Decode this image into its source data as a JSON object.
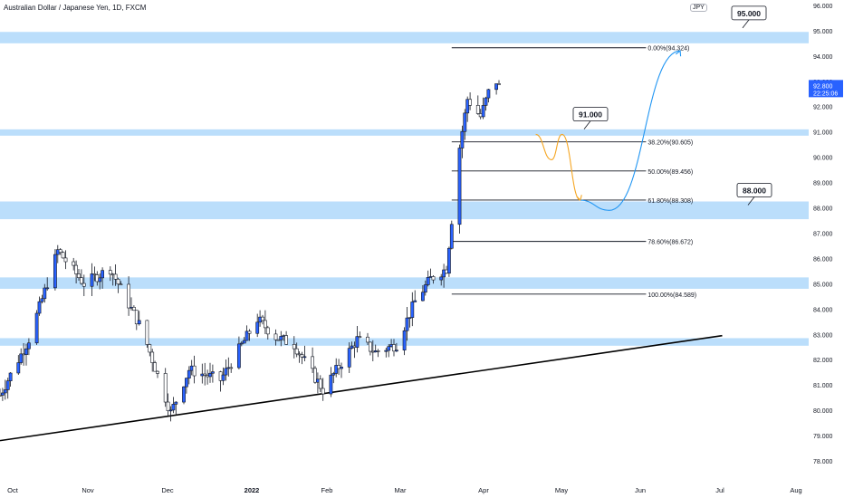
{
  "header": {
    "title": "Australian Dollar / Japanese Yen, 1D, FXCM",
    "currency_badge": "JPY"
  },
  "colors": {
    "candle_up": "#2962ff",
    "candle_down": "#ffffff",
    "wick": "#131722",
    "zone": "#bbdefb",
    "fib_line": "#131722",
    "trendline": "#000000",
    "arrow_orange": "#f5a623",
    "arrow_blue": "#2196f3",
    "price_label_bg": "#2962ff"
  },
  "chart_data": {
    "type": "candlestick",
    "symbol": "AUDJPY",
    "timeframe": "1D",
    "x_ticks": [
      "Oct",
      "Nov",
      "Dec",
      "2022",
      "Feb",
      "Mar",
      "Apr",
      "May",
      "Jun",
      "Jul",
      "Aug"
    ],
    "y_ticks": [
      "78.000",
      "79.000",
      "80.000",
      "81.000",
      "82.000",
      "83.000",
      "84.000",
      "85.000",
      "86.000",
      "87.000",
      "88.000",
      "89.000",
      "90.000",
      "91.000",
      "92.000",
      "93.000",
      "94.000",
      "95.000",
      "96.000"
    ],
    "ylim": [
      77.5,
      96.2
    ],
    "current_price": {
      "value": "92.800",
      "countdown": "22:25:06"
    },
    "anchors": [
      {
        "date": "Sep 27",
        "price": 80.6
      },
      {
        "date": "Oct 8",
        "price": 82.8
      },
      {
        "date": "Oct 19",
        "price": 86.3
      },
      {
        "date": "Oct 29",
        "price": 85.0
      },
      {
        "date": "Nov 8",
        "price": 85.6
      },
      {
        "date": "Nov 20",
        "price": 83.2
      },
      {
        "date": "Dec 1",
        "price": 79.9
      },
      {
        "date": "Dec 8",
        "price": 81.6
      },
      {
        "date": "Dec 20",
        "price": 81.2
      },
      {
        "date": "Jan 3",
        "price": 83.6
      },
      {
        "date": "Jan 10",
        "price": 82.9
      },
      {
        "date": "Jan 17",
        "price": 82.6
      },
      {
        "date": "Jan 28",
        "price": 80.8
      },
      {
        "date": "Feb 10",
        "price": 82.8
      },
      {
        "date": "Feb 17",
        "price": 82.3
      },
      {
        "date": "Feb 25",
        "price": 82.6
      },
      {
        "date": "Mar 4",
        "price": 84.3
      },
      {
        "date": "Mar 10",
        "price": 85.2
      },
      {
        "date": "Mar 16",
        "price": 85.6
      },
      {
        "date": "Mar 21",
        "price": 90.4
      },
      {
        "date": "Mar 24",
        "price": 92.3
      },
      {
        "date": "Mar 29",
        "price": 91.6
      },
      {
        "date": "Apr 3",
        "price": 93.2
      },
      {
        "date": "Apr 5",
        "price": 92.8
      }
    ],
    "zones": [
      {
        "low": 94.5,
        "high": 94.95
      },
      {
        "low": 90.85,
        "high": 91.1
      },
      {
        "low": 87.55,
        "high": 88.25
      },
      {
        "low": 84.8,
        "high": 85.25
      },
      {
        "low": 82.55,
        "high": 82.85
      }
    ],
    "fib_levels": [
      {
        "price": 94.324,
        "label": "0.00%(94.324)"
      },
      {
        "price": 90.605,
        "label": "38.20%(90.605)"
      },
      {
        "price": 89.456,
        "label": "50.00%(89.456)"
      },
      {
        "price": 88.308,
        "label": "61.80%(88.308)"
      },
      {
        "price": 86.672,
        "label": "78.60%(86.672)"
      },
      {
        "price": 84.589,
        "label": "100.00%(84.589)"
      }
    ],
    "callouts": [
      {
        "text": "95.000",
        "price": 95.0
      },
      {
        "text": "91.000",
        "price": 91.0
      },
      {
        "text": "88.000",
        "price": 88.0
      }
    ],
    "trendline": [
      {
        "date": "Sep 27",
        "price": 78.8
      },
      {
        "date": "Jun 29",
        "price": 82.95
      }
    ],
    "projection_orange": [
      {
        "date": "Apr 19",
        "price": 90.9
      },
      {
        "date": "Apr 25",
        "price": 89.9
      },
      {
        "date": "Apr 29",
        "price": 90.9
      },
      {
        "date": "May 6",
        "price": 88.3
      }
    ],
    "projection_blue": [
      {
        "date": "May 6",
        "price": 88.3
      },
      {
        "date": "May 17",
        "price": 87.9
      },
      {
        "date": "Jun 13",
        "price": 94.2
      }
    ]
  }
}
